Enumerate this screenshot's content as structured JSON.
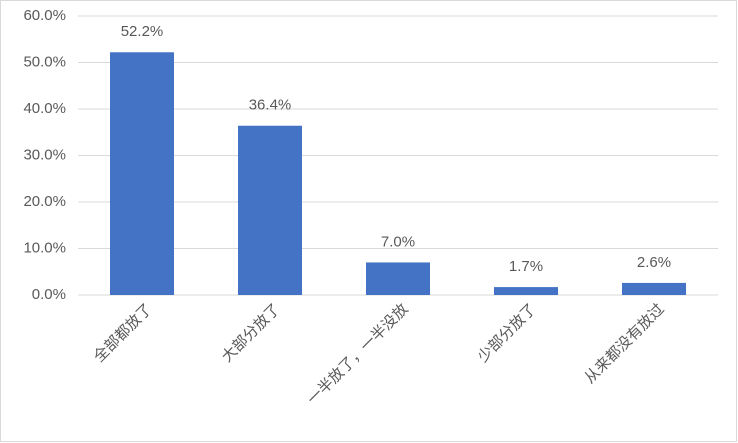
{
  "chart_data": {
    "type": "bar",
    "categories": [
      "全部都放了",
      "大部分放了",
      "一半放了，一半没放",
      "少部分放了",
      "从来都没有放过"
    ],
    "values": [
      52.2,
      36.4,
      7.0,
      1.7,
      2.6
    ],
    "value_labels": [
      "52.2%",
      "36.4%",
      "7.0%",
      "1.7%",
      "2.6%"
    ],
    "color": "#4472c4",
    "ylim": [
      0,
      60
    ],
    "yticks": [
      {
        "value": 0,
        "label": "0.0%"
      },
      {
        "value": 10,
        "label": "10.0%"
      },
      {
        "value": 20,
        "label": "20.0%"
      },
      {
        "value": 30,
        "label": "30.0%"
      },
      {
        "value": 40,
        "label": "40.0%"
      },
      {
        "value": 50,
        "label": "50.0%"
      },
      {
        "value": 60,
        "label": "60.0%"
      }
    ],
    "grid": true
  }
}
